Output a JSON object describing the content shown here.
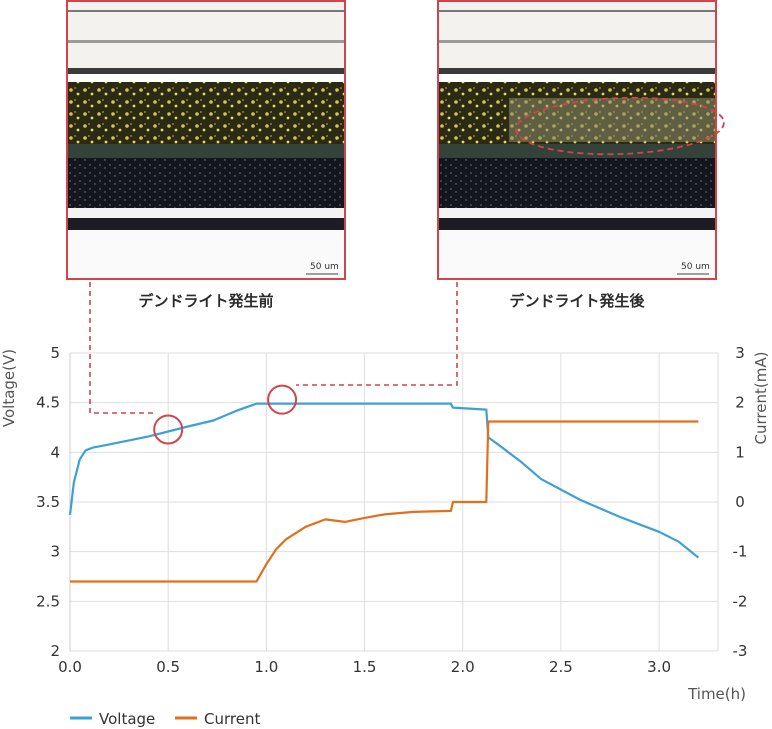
{
  "photos": [
    {
      "caption": "デンドライト発生前",
      "scale_label": "50 um"
    },
    {
      "caption": "デンドライト発生後",
      "scale_label": "50 um"
    }
  ],
  "colors": {
    "voltage": "#3fa0d4",
    "current": "#e0701e",
    "annotation": "#d0454c",
    "grid": "#dedede"
  },
  "chart_data": {
    "type": "line",
    "xlabel": "Time(h)",
    "ylabel": "Voltage(V)",
    "y2label": "Current(mA)",
    "xlim": [
      0,
      3.3
    ],
    "ylim": [
      2,
      5
    ],
    "y2lim": [
      -3,
      3
    ],
    "x_ticks": [
      "0.0",
      "0.5",
      "1.0",
      "1.5",
      "2.0",
      "2.5",
      "3.0"
    ],
    "y_ticks": [
      "2",
      "2.5",
      "3",
      "3.5",
      "4",
      "4.5",
      "5"
    ],
    "y2_ticks": [
      "-3",
      "-2",
      "-1",
      "0",
      "1",
      "2",
      "3"
    ],
    "grid": true,
    "legend": "bottom-left",
    "series": [
      {
        "name": "Voltage",
        "axis": "left",
        "x": [
          0.0,
          0.02,
          0.05,
          0.08,
          0.12,
          0.2,
          0.3,
          0.4,
          0.5,
          0.6,
          0.73,
          0.85,
          0.95,
          1.0,
          1.2,
          1.5,
          1.8,
          1.94,
          1.95,
          2.12,
          2.13,
          2.2,
          2.3,
          2.4,
          2.6,
          2.8,
          3.0,
          3.1,
          3.2
        ],
        "y": [
          3.37,
          3.7,
          3.93,
          4.02,
          4.05,
          4.08,
          4.12,
          4.16,
          4.21,
          4.26,
          4.32,
          4.42,
          4.49,
          4.49,
          4.49,
          4.49,
          4.49,
          4.49,
          4.45,
          4.43,
          4.15,
          4.05,
          3.9,
          3.73,
          3.52,
          3.35,
          3.2,
          3.1,
          2.94
        ]
      },
      {
        "name": "Current",
        "axis": "right",
        "x": [
          0.0,
          0.95,
          1.0,
          1.05,
          1.1,
          1.2,
          1.3,
          1.4,
          1.5,
          1.6,
          1.75,
          1.94,
          1.95,
          2.12,
          2.13,
          3.2
        ],
        "y": [
          -1.6,
          -1.6,
          -1.25,
          -0.95,
          -0.75,
          -0.5,
          -0.35,
          -0.4,
          -0.32,
          -0.25,
          -0.2,
          -0.18,
          0.0,
          0.0,
          1.62,
          1.62
        ]
      }
    ],
    "annotations": [
      {
        "x": 0.5,
        "y": 4.23,
        "links_to_photo": 0
      },
      {
        "x": 1.08,
        "y": 4.53,
        "links_to_photo": 1
      }
    ]
  }
}
